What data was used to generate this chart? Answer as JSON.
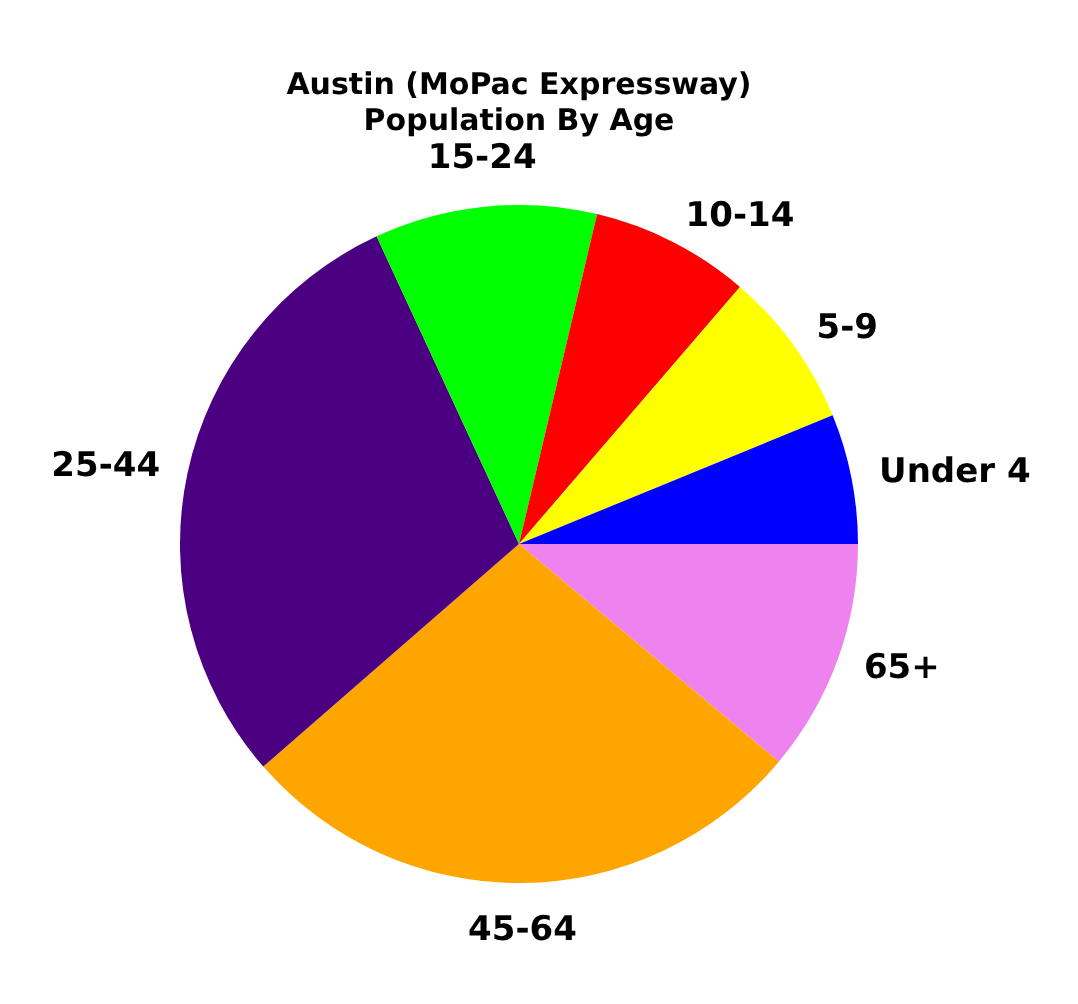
{
  "chart_data": {
    "type": "pie",
    "title": "Austin (MoPac Expressway)",
    "subtitle": "Population By Age",
    "categories": [
      "Under 4",
      "5-9",
      "10-14",
      "15-24",
      "25-44",
      "45-64",
      "65+"
    ],
    "values": [
      6.2,
      7.5,
      7.6,
      10.6,
      29.5,
      27.5,
      11.1
    ],
    "colors": [
      "#0000ff",
      "#ffff00",
      "#ff0000",
      "#00ff00",
      "#4b0082",
      "#ffa500",
      "#ee82ee"
    ]
  }
}
